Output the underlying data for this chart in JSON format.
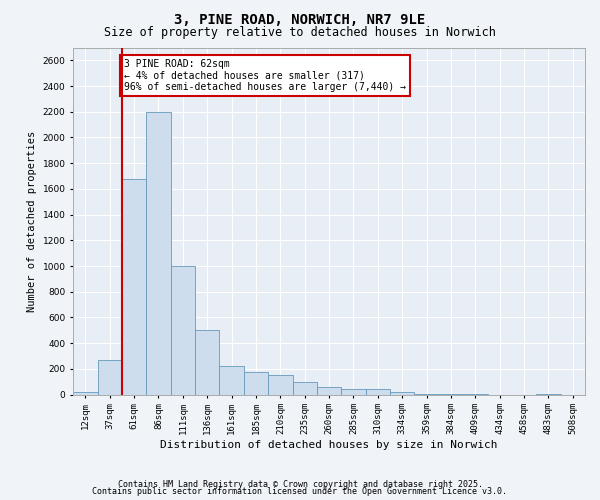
{
  "title": "3, PINE ROAD, NORWICH, NR7 9LE",
  "subtitle": "Size of property relative to detached houses in Norwich",
  "xlabel": "Distribution of detached houses by size in Norwich",
  "ylabel": "Number of detached properties",
  "bar_color": "#cddded",
  "bar_edge_color": "#6699bb",
  "background_color": "#e8eef6",
  "grid_color": "#ffffff",
  "annotation_text": "3 PINE ROAD: 62sqm\n← 4% of detached houses are smaller (317)\n96% of semi-detached houses are larger (7,440) →",
  "vline_color": "#cc0000",
  "annotation_box_color": "#cc0000",
  "categories": [
    "12sqm",
    "37sqm",
    "61sqm",
    "86sqm",
    "111sqm",
    "136sqm",
    "161sqm",
    "185sqm",
    "210sqm",
    "235sqm",
    "260sqm",
    "285sqm",
    "310sqm",
    "334sqm",
    "359sqm",
    "384sqm",
    "409sqm",
    "434sqm",
    "458sqm",
    "483sqm",
    "508sqm"
  ],
  "values": [
    20,
    270,
    1680,
    2200,
    1000,
    500,
    220,
    175,
    150,
    100,
    55,
    45,
    45,
    20,
    8,
    8,
    5,
    0,
    0,
    5,
    0
  ],
  "ylim": [
    0,
    2700
  ],
  "yticks": [
    0,
    200,
    400,
    600,
    800,
    1000,
    1200,
    1400,
    1600,
    1800,
    2000,
    2200,
    2400,
    2600
  ],
  "footer1": "Contains HM Land Registry data © Crown copyright and database right 2025.",
  "footer2": "Contains public sector information licensed under the Open Government Licence v3.0.",
  "fig_facecolor": "#f0f4f8",
  "title_fontsize": 10,
  "subtitle_fontsize": 8.5,
  "ylabel_fontsize": 7.5,
  "xlabel_fontsize": 8,
  "tick_fontsize": 6.5,
  "footer_fontsize": 6,
  "annotation_fontsize": 7
}
